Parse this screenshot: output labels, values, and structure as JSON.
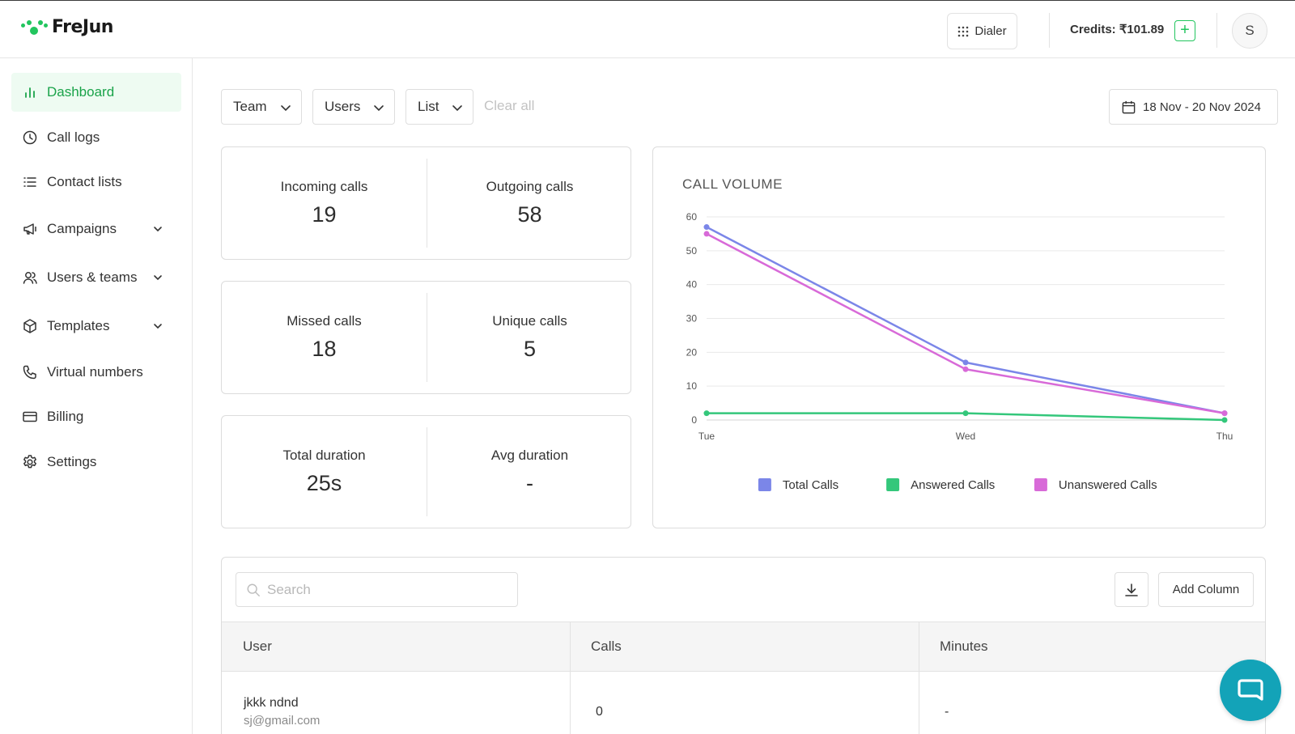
{
  "header": {
    "brand": "FreJun",
    "dialer_label": "Dialer",
    "credits_label": "Credits: ₹101.89",
    "add_credits": "+",
    "avatar_initial": "S"
  },
  "sidebar": {
    "items": [
      {
        "label": "Dashboard",
        "icon": "bar-chart-icon",
        "active": true
      },
      {
        "label": "Call logs",
        "icon": "clock-icon"
      },
      {
        "label": "Contact lists",
        "icon": "list-icon"
      },
      {
        "label": "Campaigns",
        "icon": "megaphone-icon",
        "expandable": true
      },
      {
        "label": "Users & teams",
        "icon": "users-icon",
        "expandable": true
      },
      {
        "label": "Templates",
        "icon": "box-icon",
        "expandable": true
      },
      {
        "label": "Virtual numbers",
        "icon": "phone-icon"
      },
      {
        "label": "Billing",
        "icon": "credit-card-icon"
      },
      {
        "label": "Settings",
        "icon": "gear-icon"
      }
    ]
  },
  "filters": {
    "team": "Team",
    "users": "Users",
    "list": "List",
    "clear_all": "Clear all",
    "date_range": "18 Nov - 20 Nov 2024"
  },
  "stats": {
    "incoming": {
      "label": "Incoming calls",
      "value": "19"
    },
    "outgoing": {
      "label": "Outgoing calls",
      "value": "58"
    },
    "missed": {
      "label": "Missed calls",
      "value": "18"
    },
    "unique": {
      "label": "Unique calls",
      "value": "5"
    },
    "total_duration": {
      "label": "Total duration",
      "value": "25s"
    },
    "avg_duration": {
      "label": "Avg duration",
      "value": "-"
    }
  },
  "chart_data": {
    "type": "line",
    "title": "CALL VOLUME",
    "x": [
      "Tue",
      "Wed",
      "Thu"
    ],
    "ylim": [
      0,
      60
    ],
    "yticks": [
      0,
      10,
      20,
      30,
      40,
      50,
      60
    ],
    "grid": true,
    "legend": "bottom",
    "series": [
      {
        "name": "Total Calls",
        "color": "#7b86e8",
        "values": [
          57,
          17,
          2
        ]
      },
      {
        "name": "Answered Calls",
        "color": "#34c77b",
        "values": [
          2,
          2,
          0
        ]
      },
      {
        "name": "Unanswered Calls",
        "color": "#d86ad8",
        "values": [
          55,
          15,
          2
        ]
      }
    ]
  },
  "table": {
    "search_placeholder": "Search",
    "add_column": "Add Column",
    "columns": [
      "User",
      "Calls",
      "Minutes"
    ],
    "rows": [
      {
        "name": "jkkk ndnd",
        "email": "sj@gmail.com",
        "calls": "0",
        "minutes": "-"
      }
    ]
  },
  "colors": {
    "accent": "#22c55e",
    "active_bg": "#eefbf2",
    "chat_fab": "#13a3b8"
  }
}
